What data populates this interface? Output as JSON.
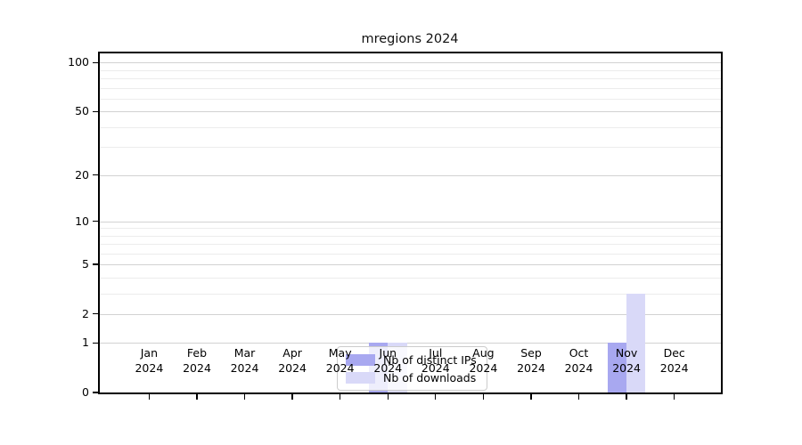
{
  "title": "mregions 2024",
  "colors": {
    "bar_distinct_ips": "#a8a8f0",
    "bar_downloads": "#d9d9f8",
    "grid_major": "#d2d2d2",
    "grid_minor": "#ececec",
    "axis": "#000000",
    "legend_border": "#cccccc"
  },
  "legend": {
    "items": [
      {
        "label": "Nb of distinct IPs",
        "color_key": "bar_distinct_ips"
      },
      {
        "label": "Nb of downloads",
        "color_key": "bar_downloads"
      }
    ]
  },
  "y_axis": {
    "scale": "log10(1+v)",
    "major_ticks": [
      0,
      1,
      2,
      5,
      10,
      20,
      50,
      100
    ],
    "minor_ticks": [
      3,
      4,
      6,
      7,
      8,
      9,
      30,
      40,
      60,
      70,
      80,
      90
    ]
  },
  "x_axis": {
    "months": [
      "Jan",
      "Feb",
      "Mar",
      "Apr",
      "May",
      "Jun",
      "Jul",
      "Aug",
      "Sep",
      "Oct",
      "Nov",
      "Dec"
    ],
    "year": "2024"
  },
  "chart_data": {
    "type": "bar",
    "title": "mregions 2024",
    "xlabel": "",
    "ylabel": "",
    "categories": [
      "Jan 2024",
      "Feb 2024",
      "Mar 2024",
      "Apr 2024",
      "May 2024",
      "Jun 2024",
      "Jul 2024",
      "Aug 2024",
      "Sep 2024",
      "Oct 2024",
      "Nov 2024",
      "Dec 2024"
    ],
    "series": [
      {
        "name": "Nb of distinct IPs",
        "values": [
          0,
          0,
          0,
          0,
          0,
          1,
          0,
          0,
          0,
          0,
          1,
          0
        ]
      },
      {
        "name": "Nb of downloads",
        "values": [
          0,
          0,
          0,
          0,
          0,
          1,
          0,
          0,
          0,
          0,
          3,
          0
        ]
      }
    ],
    "yticks": [
      0,
      1,
      2,
      5,
      10,
      20,
      50,
      100
    ],
    "ylim": [
      0,
      114
    ],
    "yscale": "log1p",
    "grid": true,
    "legend_position": "lower center"
  }
}
